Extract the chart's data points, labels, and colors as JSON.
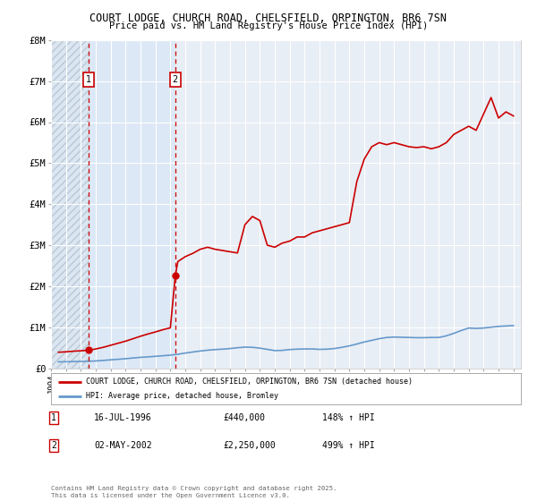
{
  "title": "COURT LODGE, CHURCH ROAD, CHELSFIELD, ORPINGTON, BR6 7SN",
  "subtitle": "Price paid vs. HM Land Registry's House Price Index (HPI)",
  "bg_color": "#ffffff",
  "plot_bg_color": "#e8eef5",
  "grid_color": "#ffffff",
  "sale1_date": 1996.54,
  "sale1_price": 440000,
  "sale1_date_str": "16-JUL-1996",
  "sale1_pct": "148%",
  "sale2_date": 2002.33,
  "sale2_price": 2250000,
  "sale2_date_str": "02-MAY-2002",
  "sale2_pct": "499%",
  "ylabel_ticks": [
    "£0",
    "£1M",
    "£2M",
    "£3M",
    "£4M",
    "£5M",
    "£6M",
    "£7M",
    "£8M"
  ],
  "ytick_values": [
    0,
    1000000,
    2000000,
    3000000,
    4000000,
    5000000,
    6000000,
    7000000,
    8000000
  ],
  "xlim": [
    1994,
    2025.5
  ],
  "ylim": [
    0,
    8000000
  ],
  "legend_line1": "COURT LODGE, CHURCH ROAD, CHELSFIELD, ORPINGTON, BR6 7SN (detached house)",
  "legend_line2": "HPI: Average price, detached house, Bromley",
  "footer": "Contains HM Land Registry data © Crown copyright and database right 2025.\nThis data is licensed under the Open Government Licence v3.0.",
  "red_line_color": "#cc0000",
  "blue_line_color": "#6699cc",
  "hpi_years": [
    1994.5,
    1995.0,
    1995.5,
    1996.0,
    1996.5,
    1997.0,
    1997.5,
    1998.0,
    1998.5,
    1999.0,
    1999.5,
    2000.0,
    2000.5,
    2001.0,
    2001.5,
    2002.0,
    2002.5,
    2003.0,
    2003.5,
    2004.0,
    2004.5,
    2005.0,
    2005.5,
    2006.0,
    2006.5,
    2007.0,
    2007.5,
    2008.0,
    2008.5,
    2009.0,
    2009.5,
    2010.0,
    2010.5,
    2011.0,
    2011.5,
    2012.0,
    2012.5,
    2013.0,
    2013.5,
    2014.0,
    2014.5,
    2015.0,
    2015.5,
    2016.0,
    2016.5,
    2017.0,
    2017.5,
    2018.0,
    2018.5,
    2019.0,
    2019.5,
    2020.0,
    2020.5,
    2021.0,
    2021.5,
    2022.0,
    2022.5,
    2023.0,
    2023.5,
    2024.0,
    2024.5,
    2025.0
  ],
  "hpi_values": [
    155000,
    158000,
    162000,
    165000,
    170000,
    178000,
    190000,
    205000,
    218000,
    233000,
    250000,
    265000,
    278000,
    290000,
    305000,
    320000,
    340000,
    370000,
    395000,
    420000,
    440000,
    455000,
    465000,
    480000,
    500000,
    515000,
    510000,
    490000,
    460000,
    430000,
    435000,
    455000,
    465000,
    470000,
    470000,
    460000,
    465000,
    480000,
    510000,
    545000,
    590000,
    640000,
    680000,
    720000,
    750000,
    760000,
    755000,
    750000,
    745000,
    745000,
    750000,
    750000,
    790000,
    850000,
    920000,
    980000,
    970000,
    980000,
    1000000,
    1020000,
    1030000,
    1040000
  ],
  "red_years": [
    1994.5,
    1995.0,
    1995.5,
    1996.0,
    1996.54,
    1997.0,
    1997.5,
    1998.0,
    1998.5,
    1999.0,
    1999.5,
    2000.0,
    2000.5,
    2001.0,
    2001.5,
    2002.0,
    2002.33,
    2002.5,
    2003.0,
    2003.5,
    2004.0,
    2004.5,
    2005.0,
    2005.5,
    2006.0,
    2006.5,
    2007.0,
    2007.5,
    2008.0,
    2008.5,
    2009.0,
    2009.5,
    2010.0,
    2010.5,
    2011.0,
    2011.5,
    2012.0,
    2012.5,
    2013.0,
    2013.5,
    2014.0,
    2014.5,
    2015.0,
    2015.5,
    2016.0,
    2016.5,
    2017.0,
    2017.5,
    2018.0,
    2018.5,
    2019.0,
    2019.5,
    2020.0,
    2020.5,
    2021.0,
    2021.5,
    2022.0,
    2022.5,
    2023.0,
    2023.5,
    2024.0,
    2024.5,
    2025.0
  ],
  "red_values": [
    390000,
    400000,
    415000,
    425000,
    440000,
    470000,
    510000,
    560000,
    610000,
    660000,
    720000,
    780000,
    835000,
    885000,
    940000,
    985000,
    2250000,
    2600000,
    2720000,
    2800000,
    2900000,
    2950000,
    2900000,
    2870000,
    2840000,
    2810000,
    3500000,
    3700000,
    3600000,
    3000000,
    2950000,
    3050000,
    3100000,
    3200000,
    3200000,
    3300000,
    3350000,
    3400000,
    3450000,
    3500000,
    3550000,
    4550000,
    5100000,
    5400000,
    5500000,
    5450000,
    5500000,
    5450000,
    5400000,
    5380000,
    5400000,
    5350000,
    5400000,
    5500000,
    5700000,
    5800000,
    5900000,
    5800000,
    6200000,
    6600000,
    6100000,
    6250000,
    6150000
  ]
}
